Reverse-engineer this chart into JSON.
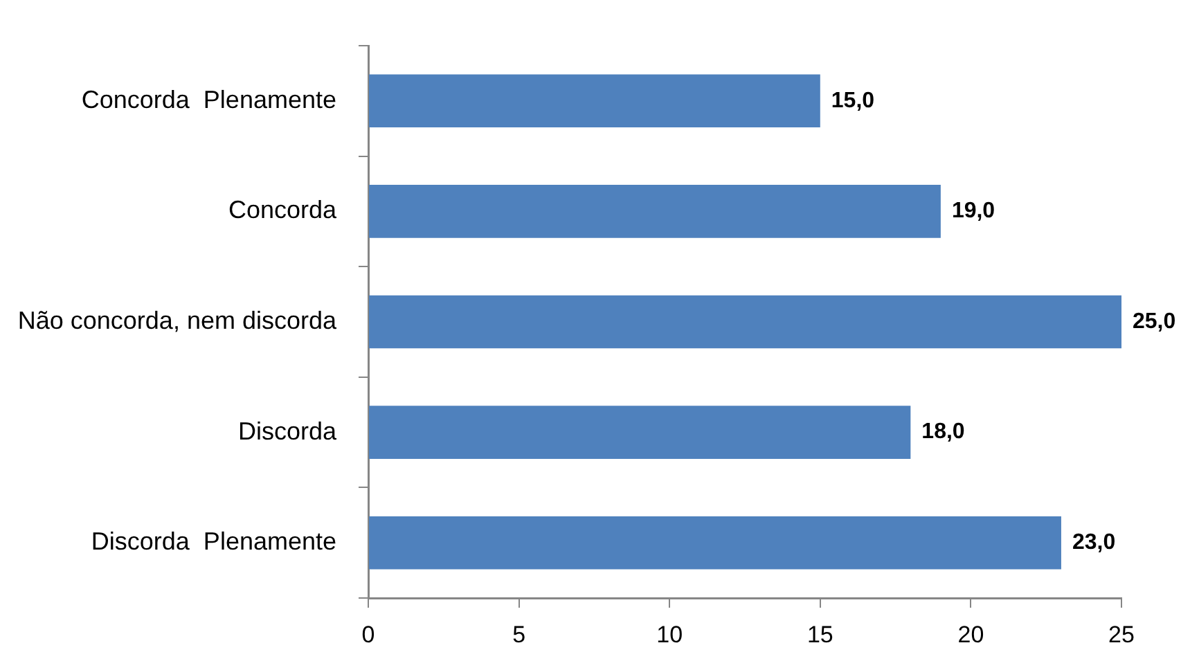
{
  "chart_data": {
    "type": "bar",
    "orientation": "horizontal",
    "categories": [
      "Concorda  Plenamente",
      "Concorda",
      "Não concorda, nem discorda",
      "Discorda",
      "Discorda  Plenamente"
    ],
    "values": [
      15,
      19,
      25,
      18,
      23
    ],
    "color": "#4f81bd",
    "value_labels": [
      "15,0",
      "19,0",
      "25,0",
      "18,0",
      "23,0"
    ],
    "xlim": [
      0,
      25
    ],
    "xticks": [
      0,
      5,
      10,
      15,
      20,
      25
    ]
  }
}
